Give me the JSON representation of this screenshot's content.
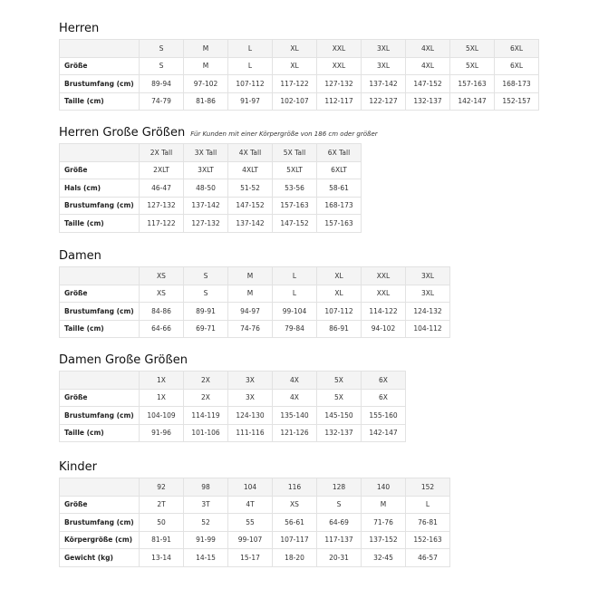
{
  "tables": [
    {
      "title": "Herren",
      "note": "",
      "columns": [
        "S",
        "M",
        "L",
        "XL",
        "XXL",
        "3XL",
        "4XL",
        "5XL",
        "6XL"
      ],
      "rows": [
        {
          "label": "Größe",
          "values": [
            "S",
            "M",
            "L",
            "XL",
            "XXL",
            "3XL",
            "4XL",
            "5XL",
            "6XL"
          ]
        },
        {
          "label": "Brustumfang (cm)",
          "values": [
            "89-94",
            "97-102",
            "107-112",
            "117-122",
            "127-132",
            "137-142",
            "147-152",
            "157-163",
            "168-173"
          ]
        },
        {
          "label": "Taille (cm)",
          "values": [
            "74-79",
            "81-86",
            "91-97",
            "102-107",
            "112-117",
            "122-127",
            "132-137",
            "142-147",
            "152-157"
          ]
        }
      ]
    },
    {
      "title": "Herren Große Größen",
      "note": "Für Kunden mit einer Körpergröße von 186 cm oder größer",
      "columns": [
        "2X Tall",
        "3X Tall",
        "4X Tall",
        "5X Tall",
        "6X Tall"
      ],
      "rows": [
        {
          "label": "Größe",
          "values": [
            "2XLT",
            "3XLT",
            "4XLT",
            "5XLT",
            "6XLT"
          ]
        },
        {
          "label": "Hals (cm)",
          "values": [
            "46-47",
            "48-50",
            "51-52",
            "53-56",
            "58-61"
          ]
        },
        {
          "label": "Brustumfang (cm)",
          "values": [
            "127-132",
            "137-142",
            "147-152",
            "157-163",
            "168-173"
          ]
        },
        {
          "label": "Taille (cm)",
          "values": [
            "117-122",
            "127-132",
            "137-142",
            "147-152",
            "157-163"
          ]
        }
      ]
    },
    {
      "title": "Damen",
      "note": "",
      "columns": [
        "XS",
        "S",
        "M",
        "L",
        "XL",
        "XXL",
        "3XL"
      ],
      "rows": [
        {
          "label": "Größe",
          "values": [
            "XS",
            "S",
            "M",
            "L",
            "XL",
            "XXL",
            "3XL"
          ]
        },
        {
          "label": "Brustumfang (cm)",
          "values": [
            "84-86",
            "89-91",
            "94-97",
            "99-104",
            "107-112",
            "114-122",
            "124-132"
          ]
        },
        {
          "label": "Taille (cm)",
          "values": [
            "64-66",
            "69-71",
            "74-76",
            "79-84",
            "86-91",
            "94-102",
            "104-112"
          ]
        }
      ]
    },
    {
      "title": "Damen Große Größen",
      "note": "",
      "columns": [
        "1X",
        "2X",
        "3X",
        "4X",
        "5X",
        "6X"
      ],
      "rows": [
        {
          "label": "Größe",
          "values": [
            "1X",
            "2X",
            "3X",
            "4X",
            "5X",
            "6X"
          ]
        },
        {
          "label": "Brustumfang (cm)",
          "values": [
            "104-109",
            "114-119",
            "124-130",
            "135-140",
            "145-150",
            "155-160"
          ]
        },
        {
          "label": "Taille (cm)",
          "values": [
            "91-96",
            "101-106",
            "111-116",
            "121-126",
            "132-137",
            "142-147"
          ]
        }
      ]
    },
    {
      "title": "Kinder",
      "note": "",
      "columns": [
        "92",
        "98",
        "104",
        "116",
        "128",
        "140",
        "152"
      ],
      "rows": [
        {
          "label": "Größe",
          "values": [
            "2T",
            "3T",
            "4T",
            "XS",
            "S",
            "M",
            "L"
          ]
        },
        {
          "label": "Brustumfang (cm)",
          "values": [
            "50",
            "52",
            "55",
            "56-61",
            "64-69",
            "71-76",
            "76-81"
          ]
        },
        {
          "label": "Körpergröße (cm)",
          "values": [
            "81-91",
            "91-99",
            "99-107",
            "107-117",
            "117-137",
            "137-152",
            "152-163"
          ]
        },
        {
          "label": "Gewicht (kg)",
          "values": [
            "13-14",
            "14-15",
            "15-17",
            "18-20",
            "20-31",
            "32-45",
            "46-57"
          ]
        }
      ]
    }
  ]
}
